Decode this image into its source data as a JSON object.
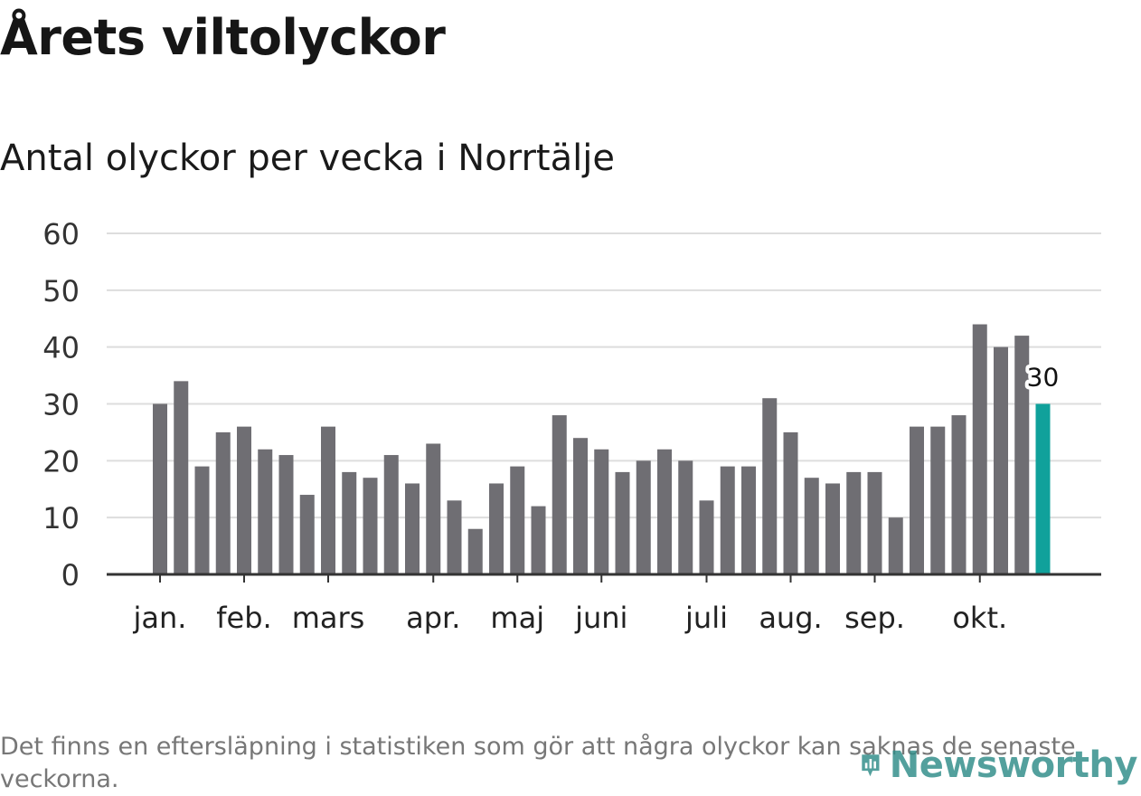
{
  "title": "Årets viltolyckor",
  "subtitle": "Antal olyckor per vecka i Norrtälje",
  "footnote": "Det finns en eftersläpning i statistiken som gör att några olyckor kan saknas de senaste veckorna.",
  "logo_text": "Newsworthy",
  "colors": {
    "bar": "#6f6e73",
    "highlight": "#10a19b",
    "grid": "#dddddd",
    "axis": "#333333",
    "logo": "#2e8c88"
  },
  "chart_data": {
    "type": "bar",
    "title": "Antal olyckor per vecka i Norrtälje",
    "xlabel": "",
    "ylabel": "",
    "ylim": [
      0,
      60
    ],
    "yticks": [
      0,
      10,
      20,
      30,
      40,
      50,
      60
    ],
    "values": [
      30,
      34,
      19,
      25,
      26,
      22,
      21,
      14,
      26,
      18,
      17,
      21,
      16,
      23,
      13,
      8,
      16,
      19,
      12,
      28,
      24,
      22,
      18,
      20,
      22,
      20,
      13,
      19,
      19,
      31,
      25,
      17,
      16,
      18,
      18,
      10,
      26,
      26,
      28,
      44,
      40,
      42,
      30
    ],
    "month_labels": [
      {
        "label": "jan.",
        "week_index": 0
      },
      {
        "label": "feb.",
        "week_index": 4
      },
      {
        "label": "mars",
        "week_index": 8
      },
      {
        "label": "apr.",
        "week_index": 13
      },
      {
        "label": "maj",
        "week_index": 17
      },
      {
        "label": "juni",
        "week_index": 21
      },
      {
        "label": "juli",
        "week_index": 26
      },
      {
        "label": "aug.",
        "week_index": 30
      },
      {
        "label": "sep.",
        "week_index": 34
      },
      {
        "label": "okt.",
        "week_index": 39
      }
    ],
    "highlight_index": 42,
    "highlight_label": "30",
    "grid": true,
    "legend": "none"
  }
}
